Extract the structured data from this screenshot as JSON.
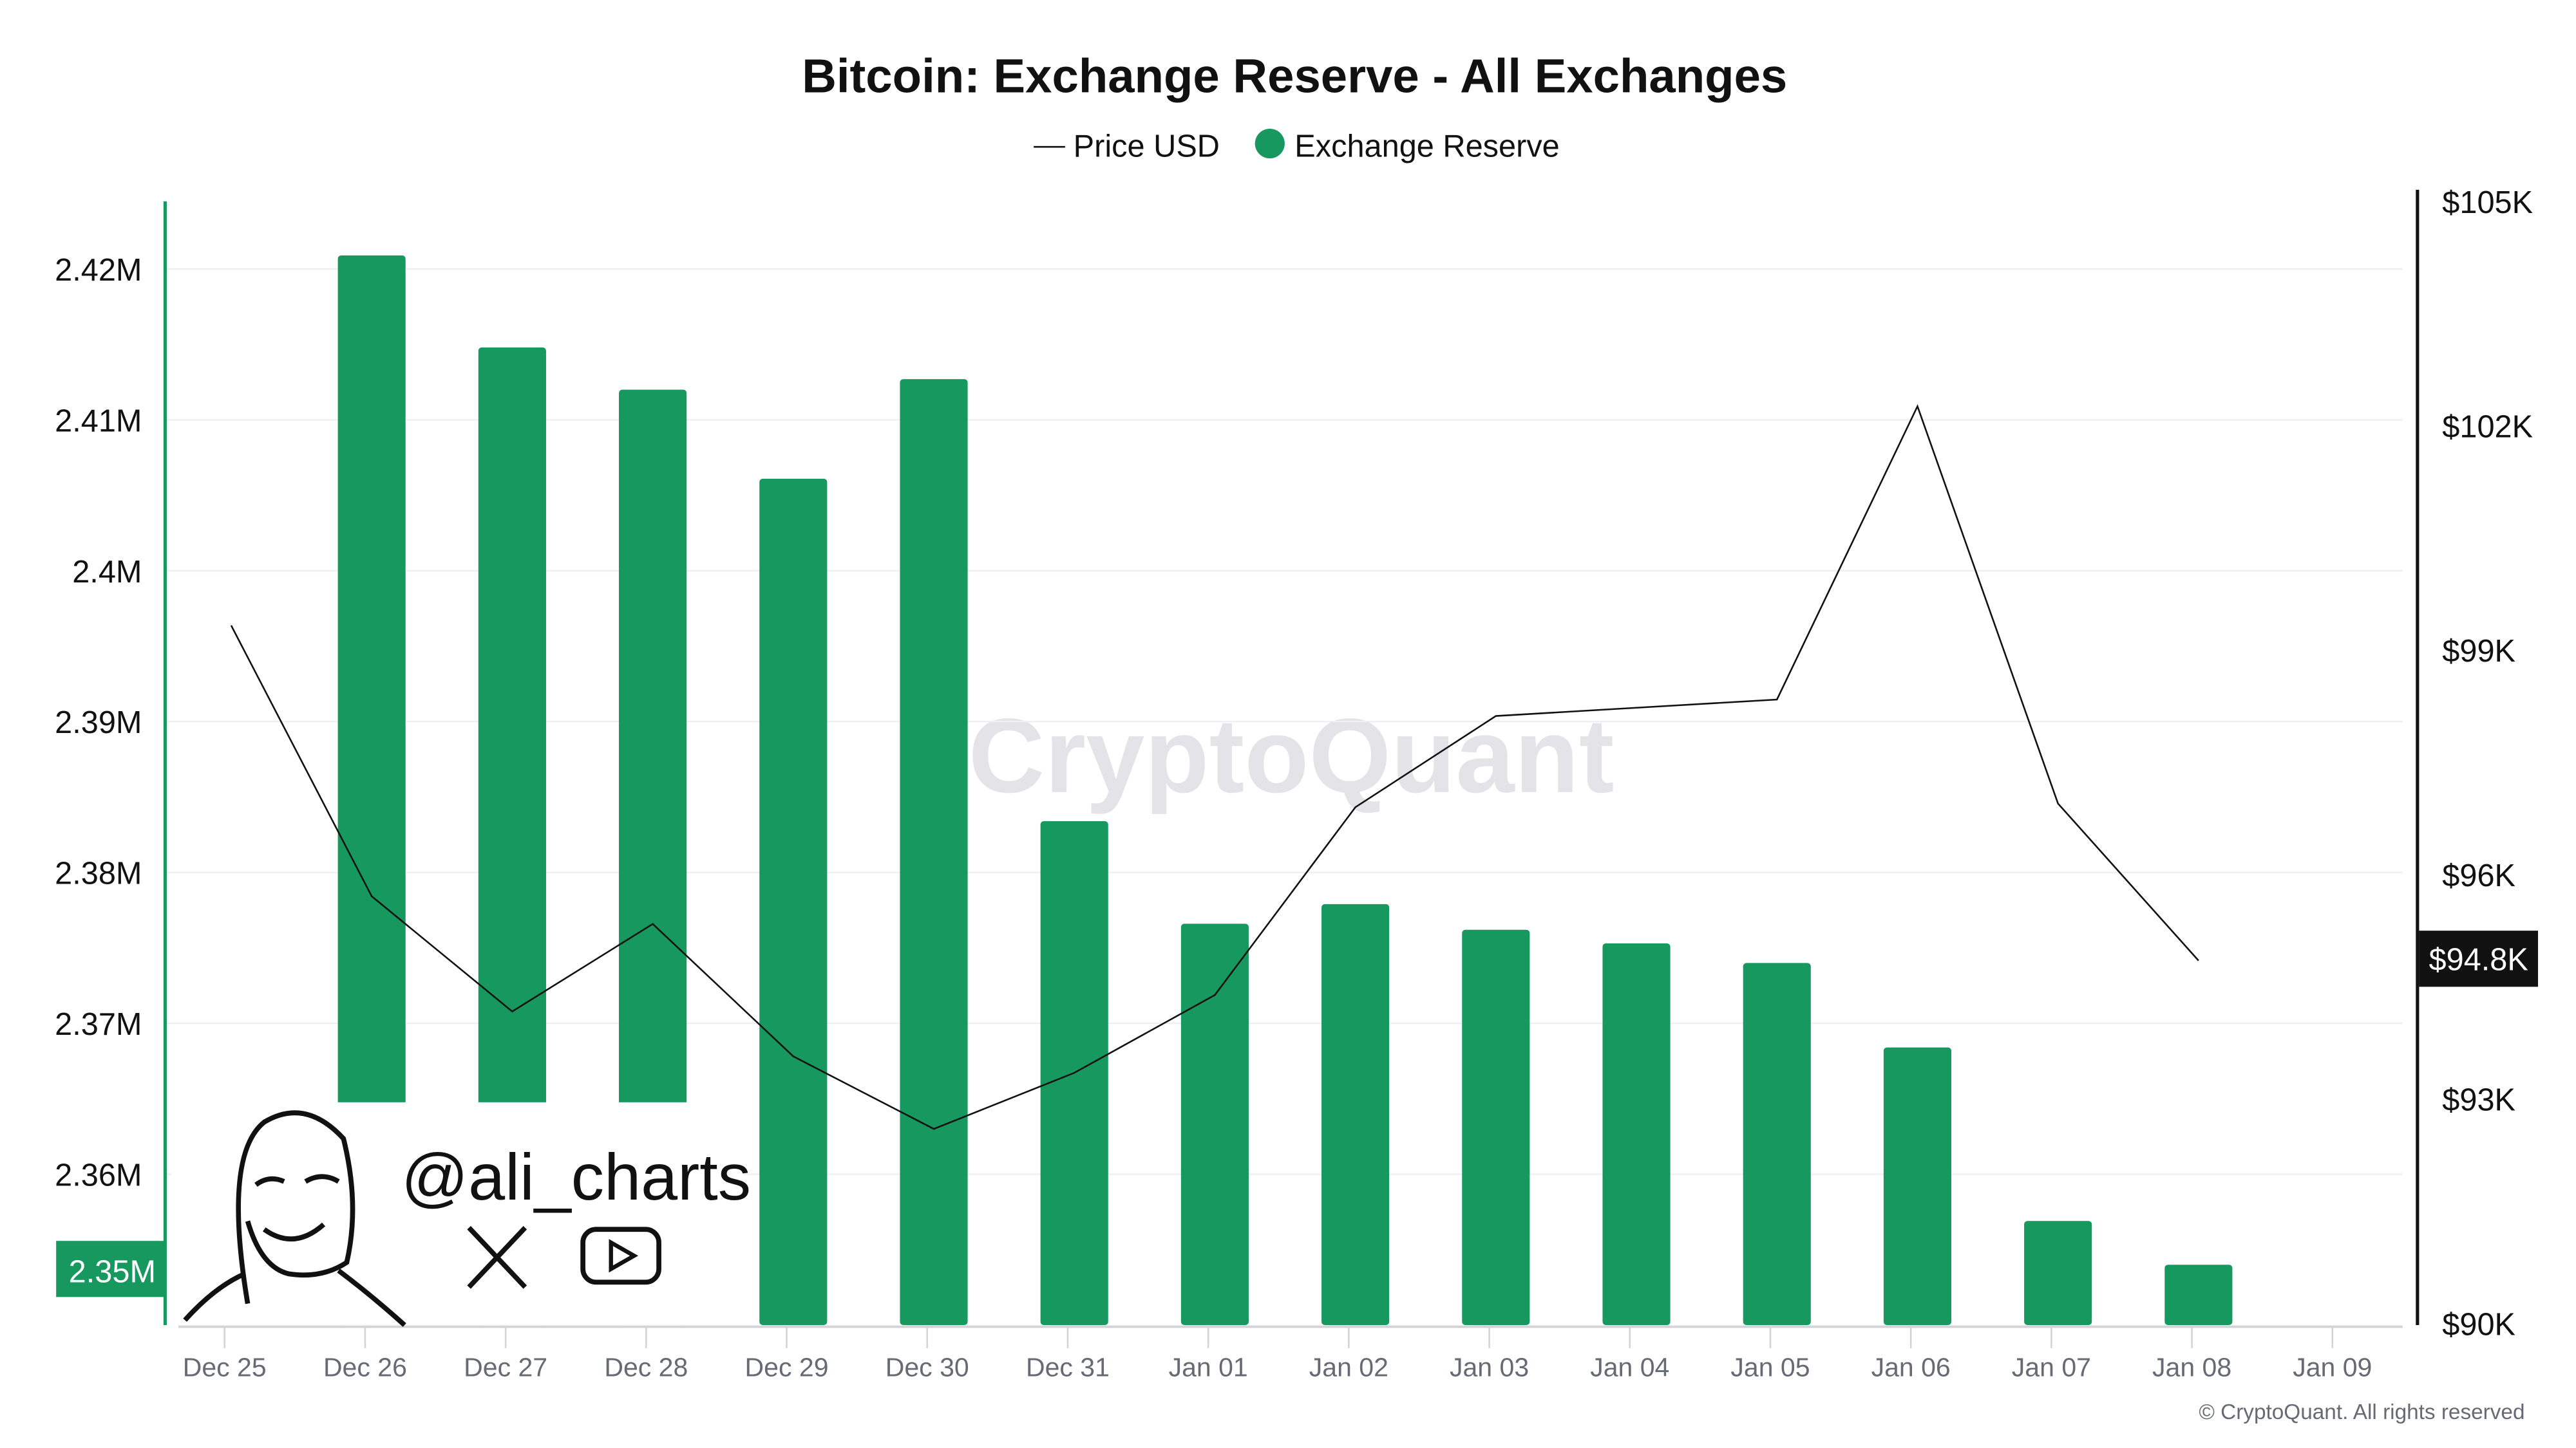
{
  "chart_data": {
    "type": "bar",
    "title": "Bitcoin: Exchange Reserve - All Exchanges",
    "legend": [
      "Price USD",
      "Exchange Reserve"
    ],
    "legend_placement": "top-center",
    "categories": [
      "Dec 25",
      "Dec 26",
      "Dec 27",
      "Dec 28",
      "Dec 29",
      "Dec 30",
      "Dec 31",
      "Jan 01",
      "Jan 02",
      "Jan 03",
      "Jan 04",
      "Jan 05",
      "Jan 06",
      "Jan 07",
      "Jan 08",
      "Jan 09"
    ],
    "series": [
      {
        "name": "Exchange Reserve",
        "type": "bar",
        "axis": "left",
        "color": "#16985f",
        "values": [
          null,
          2.4209,
          2.4148,
          2.412,
          2.4061,
          2.4127,
          2.3834,
          2.3766,
          2.3779,
          2.3762,
          2.3753,
          2.374,
          2.3684,
          2.3569,
          2.354,
          null
        ]
      },
      {
        "name": "Price USD",
        "type": "line",
        "axis": "right",
        "color": "#111111",
        "values": [
          99.33,
          95.71,
          94.17,
          95.34,
          93.57,
          92.6,
          93.35,
          94.39,
          96.9,
          98.12,
          98.23,
          98.34,
          102.26,
          96.95,
          94.85,
          null
        ]
      }
    ],
    "left_axis": {
      "ticks": [
        "2.42M",
        "2.41M",
        "2.4M",
        "2.39M",
        "2.38M",
        "2.37M",
        "2.36M"
      ],
      "tick_values": [
        2.42,
        2.41,
        2.4,
        2.39,
        2.38,
        2.37,
        2.36
      ],
      "range": [
        2.35,
        2.425
      ],
      "current_label": "2.35M"
    },
    "right_axis": {
      "ticks": [
        "$105K",
        "$102K",
        "$99K",
        "$96K",
        "$93K",
        "$90K"
      ],
      "tick_values": [
        105,
        102,
        99,
        96,
        93,
        90
      ],
      "range": [
        90,
        105
      ],
      "current_label": "$94.8K"
    },
    "grid": true,
    "watermark": "CryptoQuant",
    "copyright": "© CryptoQuant. All rights reserved",
    "overlay_handle": "@ali_charts"
  }
}
